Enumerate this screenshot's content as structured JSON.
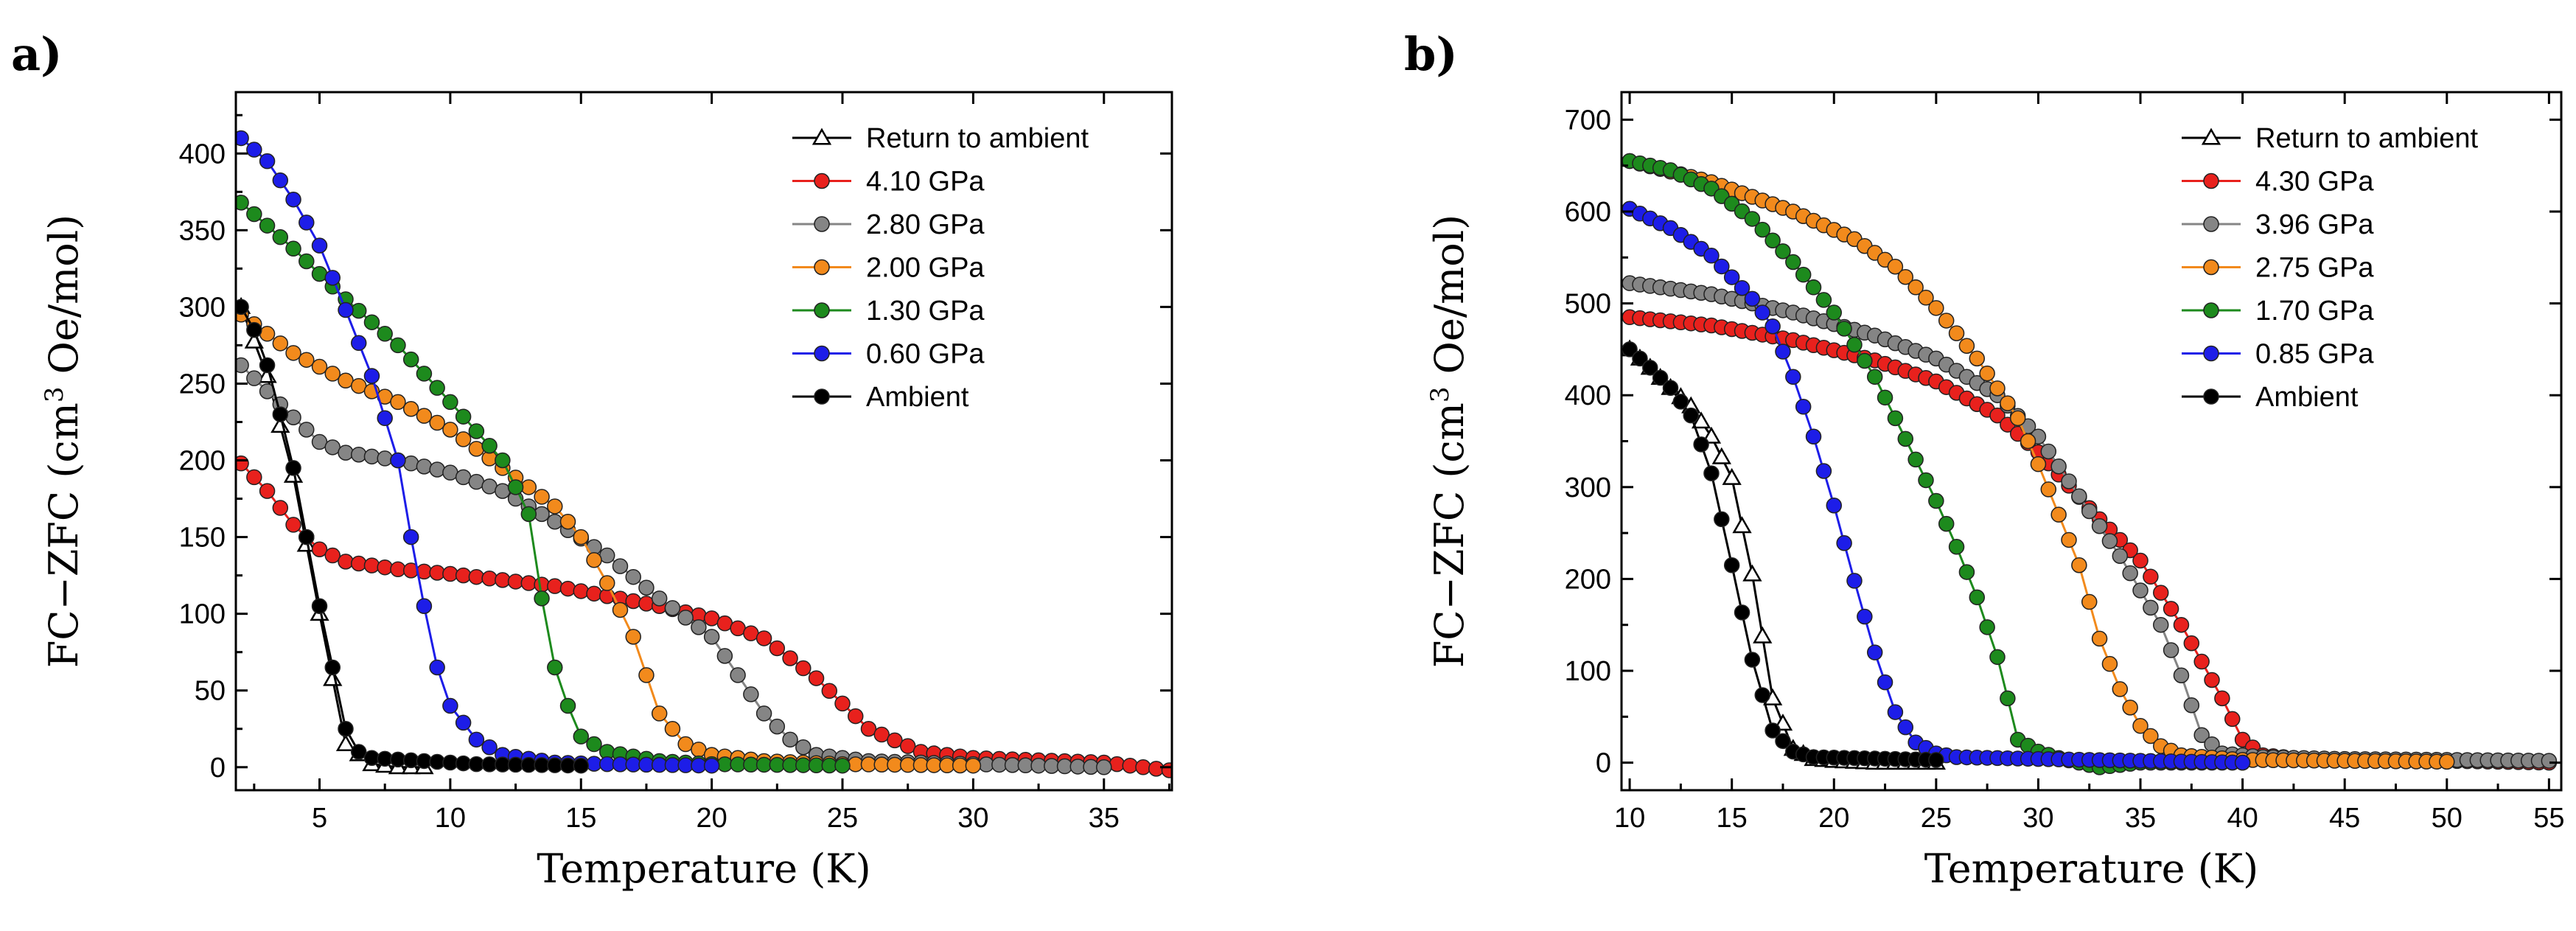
{
  "chart_data": [
    {
      "panel_label": "a)",
      "type": "line",
      "xlabel": "Temperature (K)",
      "ylabel_main": "FC−ZFC (cm",
      "ylabel_sup": "3",
      "ylabel_rest": " Oe/mol)",
      "xlim": [
        1.8,
        37.6
      ],
      "ylim": [
        -15,
        440
      ],
      "xticks": [
        5,
        10,
        15,
        20,
        25,
        30,
        35
      ],
      "xtick_labels": [
        "5",
        "10",
        "15",
        "20",
        "25",
        "30",
        "35"
      ],
      "yticks": [
        0,
        50,
        100,
        150,
        200,
        250,
        300,
        350,
        400
      ],
      "ytick_labels": [
        "0",
        "50",
        "100",
        "150",
        "200",
        "250",
        "300",
        "350",
        "400"
      ],
      "legend_position": "top-right",
      "series": [
        {
          "name": "Return to ambient",
          "color": "#000000",
          "marker": "open-triangle",
          "knots": [
            [
              2,
              300
            ],
            [
              3,
              255
            ],
            [
              4,
              190
            ],
            [
              5,
              100
            ],
            [
              6,
              15
            ],
            [
              7,
              2
            ],
            [
              8,
              0
            ],
            [
              9,
              0
            ]
          ]
        },
        {
          "name": "4.10 GPa",
          "color": "#e8211d",
          "marker": "dot",
          "knots": [
            [
              2,
              198
            ],
            [
              3,
              180
            ],
            [
              4,
              158
            ],
            [
              5,
              142
            ],
            [
              6,
              134
            ],
            [
              8,
              129
            ],
            [
              10,
              126
            ],
            [
              14,
              118
            ],
            [
              18,
              105
            ],
            [
              20,
              97
            ],
            [
              22,
              84
            ],
            [
              24,
              58
            ],
            [
              26,
              25
            ],
            [
              28,
              10
            ],
            [
              30,
              6
            ],
            [
              35,
              3
            ],
            [
              37.5,
              -2
            ]
          ]
        },
        {
          "name": "2.80 GPa",
          "color": "#858585",
          "marker": "dot",
          "knots": [
            [
              2,
              262
            ],
            [
              3,
              245
            ],
            [
              4,
              228
            ],
            [
              5,
              212
            ],
            [
              6,
              205
            ],
            [
              8,
              200
            ],
            [
              10,
              192
            ],
            [
              12,
              180
            ],
            [
              14,
              160
            ],
            [
              16,
              138
            ],
            [
              18,
              110
            ],
            [
              20,
              85
            ],
            [
              21,
              60
            ],
            [
              22,
              35
            ],
            [
              23,
              18
            ],
            [
              24,
              8
            ],
            [
              26,
              4
            ],
            [
              30,
              2
            ],
            [
              35,
              0
            ]
          ]
        },
        {
          "name": "2.00 GPa",
          "color": "#f28a1c",
          "marker": "dot",
          "knots": [
            [
              2,
              295
            ],
            [
              4,
              270
            ],
            [
              6,
              252
            ],
            [
              8,
              238
            ],
            [
              10,
              220
            ],
            [
              12,
              195
            ],
            [
              14,
              170
            ],
            [
              15,
              150
            ],
            [
              16,
              120
            ],
            [
              17,
              85
            ],
            [
              17.5,
              60
            ],
            [
              18,
              35
            ],
            [
              19,
              15
            ],
            [
              20,
              8
            ],
            [
              22,
              4
            ],
            [
              25,
              2
            ],
            [
              30,
              1
            ]
          ]
        },
        {
          "name": "1.30 GPa",
          "color": "#1d8a1d",
          "marker": "dot",
          "knots": [
            [
              2,
              368
            ],
            [
              4,
              338
            ],
            [
              6,
              305
            ],
            [
              8,
              275
            ],
            [
              10,
              238
            ],
            [
              12,
              200
            ],
            [
              13,
              165
            ],
            [
              13.5,
              110
            ],
            [
              14,
              65
            ],
            [
              14.5,
              40
            ],
            [
              15,
              20
            ],
            [
              16,
              10
            ],
            [
              18,
              4
            ],
            [
              20,
              2
            ],
            [
              25,
              1
            ]
          ]
        },
        {
          "name": "0.60 GPa",
          "color": "#1d1de8",
          "marker": "dot",
          "knots": [
            [
              2,
              410
            ],
            [
              3,
              395
            ],
            [
              4,
              370
            ],
            [
              5,
              340
            ],
            [
              6,
              298
            ],
            [
              7,
              255
            ],
            [
              8,
              200
            ],
            [
              8.5,
              150
            ],
            [
              9,
              105
            ],
            [
              9.5,
              65
            ],
            [
              10,
              40
            ],
            [
              11,
              18
            ],
            [
              12,
              8
            ],
            [
              14,
              3
            ],
            [
              16,
              2
            ],
            [
              20,
              1
            ]
          ]
        },
        {
          "name": "Ambient",
          "color": "#000000",
          "marker": "dot",
          "knots": [
            [
              2,
              300
            ],
            [
              2.5,
              285
            ],
            [
              3,
              262
            ],
            [
              3.5,
              230
            ],
            [
              4,
              195
            ],
            [
              4.5,
              150
            ],
            [
              5,
              105
            ],
            [
              5.5,
              65
            ],
            [
              6,
              25
            ],
            [
              6.5,
              10
            ],
            [
              7,
              6
            ],
            [
              9,
              4
            ],
            [
              11,
              2
            ],
            [
              15,
              1
            ]
          ]
        }
      ]
    },
    {
      "panel_label": "b)",
      "type": "line",
      "xlabel": "Temperature (K)",
      "ylabel_main": "FC−ZFC (cm",
      "ylabel_sup": "3",
      "ylabel_rest": " Oe/mol)",
      "xlim": [
        9.6,
        55.6
      ],
      "ylim": [
        -30,
        730
      ],
      "xticks": [
        10,
        15,
        20,
        25,
        30,
        35,
        40,
        45,
        50,
        55
      ],
      "xtick_labels": [
        "10",
        "15",
        "20",
        "25",
        "30",
        "35",
        "40",
        "45",
        "50",
        "55"
      ],
      "yticks": [
        0,
        100,
        200,
        300,
        400,
        500,
        600,
        700
      ],
      "ytick_labels": [
        "0",
        "100",
        "200",
        "300",
        "400",
        "500",
        "600",
        "700"
      ],
      "legend_position": "top-right",
      "series": [
        {
          "name": "Return to ambient",
          "color": "#000000",
          "marker": "open-triangle",
          "knots": [
            [
              10,
              450
            ],
            [
              11,
              430
            ],
            [
              12,
              408
            ],
            [
              13,
              388
            ],
            [
              14,
              355
            ],
            [
              15,
              310
            ],
            [
              16,
              205
            ],
            [
              17,
              70
            ],
            [
              18,
              15
            ],
            [
              19,
              4
            ],
            [
              20,
              2
            ],
            [
              22,
              0
            ],
            [
              25,
              0
            ]
          ]
        },
        {
          "name": "4.30 GPa",
          "color": "#e8211d",
          "marker": "dot",
          "knots": [
            [
              10,
              485
            ],
            [
              14,
              476
            ],
            [
              18,
              460
            ],
            [
              22,
              438
            ],
            [
              25,
              415
            ],
            [
              28,
              378
            ],
            [
              30,
              338
            ],
            [
              33,
              265
            ],
            [
              35,
              220
            ],
            [
              37,
              150
            ],
            [
              38,
              110
            ],
            [
              39,
              70
            ],
            [
              40,
              25
            ],
            [
              41,
              8
            ],
            [
              43,
              4
            ],
            [
              50,
              2
            ],
            [
              55,
              0
            ]
          ]
        },
        {
          "name": "3.96 GPa",
          "color": "#858585",
          "marker": "dot",
          "knots": [
            [
              10,
              522
            ],
            [
              14,
              510
            ],
            [
              18,
              490
            ],
            [
              22,
              465
            ],
            [
              25,
              440
            ],
            [
              28,
              400
            ],
            [
              30,
              355
            ],
            [
              32,
              290
            ],
            [
              34,
              225
            ],
            [
              36,
              150
            ],
            [
              37,
              95
            ],
            [
              38,
              30
            ],
            [
              39,
              10
            ],
            [
              41,
              6
            ],
            [
              45,
              4
            ],
            [
              55,
              2
            ]
          ]
        },
        {
          "name": "2.75 GPa",
          "color": "#f28a1c",
          "marker": "dot",
          "knots": [
            [
              10,
              655
            ],
            [
              14,
              632
            ],
            [
              18,
              600
            ],
            [
              21,
              570
            ],
            [
              23,
              540
            ],
            [
              25,
              495
            ],
            [
              27,
              440
            ],
            [
              29,
              375
            ],
            [
              30,
              325
            ],
            [
              31,
              270
            ],
            [
              32,
              215
            ],
            [
              33,
              135
            ],
            [
              34,
              80
            ],
            [
              35,
              40
            ],
            [
              36,
              18
            ],
            [
              37,
              8
            ],
            [
              40,
              3
            ],
            [
              50,
              1
            ]
          ]
        },
        {
          "name": "1.70 GPa",
          "color": "#1d8a1d",
          "marker": "dot",
          "knots": [
            [
              10,
              655
            ],
            [
              12,
              645
            ],
            [
              14,
              625
            ],
            [
              16,
              592
            ],
            [
              18,
              545
            ],
            [
              20,
              490
            ],
            [
              22,
              420
            ],
            [
              23,
              375
            ],
            [
              24,
              330
            ],
            [
              25,
              285
            ],
            [
              26,
              235
            ],
            [
              27,
              180
            ],
            [
              28,
              115
            ],
            [
              29,
              25
            ],
            [
              30,
              12
            ],
            [
              31,
              5
            ],
            [
              33,
              -5
            ],
            [
              35,
              0
            ],
            [
              40,
              0
            ]
          ]
        },
        {
          "name": "0.85 GPa",
          "color": "#1d1de8",
          "marker": "dot",
          "knots": [
            [
              10,
              603
            ],
            [
              12,
              582
            ],
            [
              14,
              552
            ],
            [
              16,
              505
            ],
            [
              17,
              475
            ],
            [
              18,
              420
            ],
            [
              19,
              355
            ],
            [
              20,
              280
            ],
            [
              21,
              198
            ],
            [
              22,
              120
            ],
            [
              23,
              55
            ],
            [
              24,
              22
            ],
            [
              25,
              10
            ],
            [
              26,
              6
            ],
            [
              30,
              4
            ],
            [
              35,
              2
            ],
            [
              40,
              0
            ]
          ]
        },
        {
          "name": "Ambient",
          "color": "#000000",
          "marker": "dot",
          "knots": [
            [
              10,
              450
            ],
            [
              11,
              430
            ],
            [
              12,
              408
            ],
            [
              13,
              378
            ],
            [
              14,
              315
            ],
            [
              15,
              215
            ],
            [
              16,
              112
            ],
            [
              17,
              35
            ],
            [
              18,
              12
            ],
            [
              19,
              6
            ],
            [
              21,
              5
            ],
            [
              23,
              4
            ],
            [
              25,
              3
            ]
          ]
        }
      ]
    }
  ]
}
